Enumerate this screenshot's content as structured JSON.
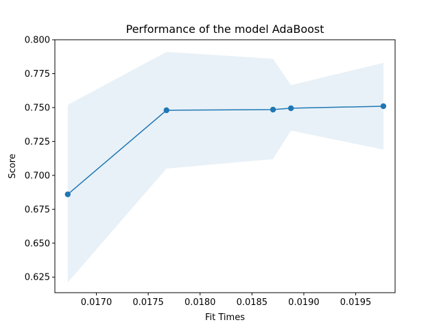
{
  "chart_data": {
    "type": "line",
    "title": "Performance of the model AdaBoost",
    "xlabel": "Fit Times",
    "ylabel": "Score",
    "xlim": [
      0.0166,
      0.01988
    ],
    "ylim": [
      0.6135,
      0.8
    ],
    "x_ticks": [
      0.017,
      0.0175,
      0.018,
      0.0185,
      0.019,
      0.0195
    ],
    "x_tick_labels": [
      "0.0170",
      "0.0175",
      "0.0180",
      "0.0185",
      "0.0190",
      "0.0195"
    ],
    "y_ticks": [
      0.625,
      0.65,
      0.675,
      0.7,
      0.725,
      0.75,
      0.775,
      0.8
    ],
    "y_tick_labels": [
      "0.625",
      "0.650",
      "0.675",
      "0.700",
      "0.725",
      "0.750",
      "0.775",
      "0.800"
    ],
    "grid": false,
    "series": [
      {
        "x": [
          0.016724,
          0.017676,
          0.018703,
          0.018876,
          0.019767
        ],
        "values": [
          0.686,
          0.748,
          0.7485,
          0.7495,
          0.751
        ],
        "band_upper": [
          0.752,
          0.791,
          0.786,
          0.7665,
          0.783
        ],
        "band_lower": [
          0.621,
          0.705,
          0.712,
          0.733,
          0.719
        ]
      }
    ],
    "colors": {
      "line": "#1f77b4",
      "band": "#1f77b4",
      "band_opacity": 0.1
    }
  }
}
